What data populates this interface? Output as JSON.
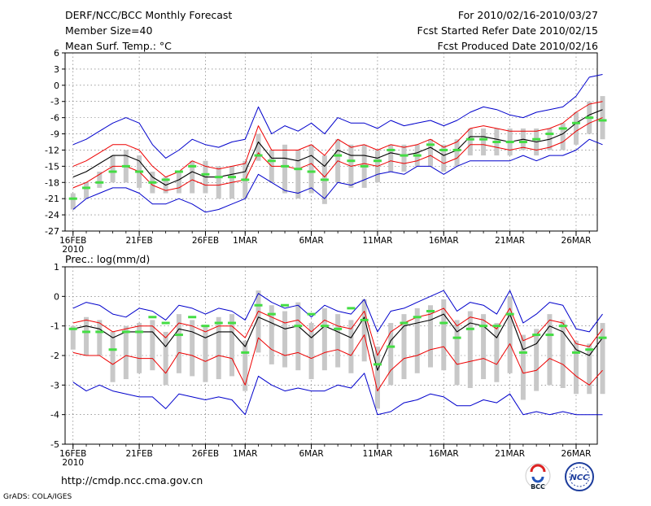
{
  "header": {
    "left": [
      "DERF/NCC/BCC Monthly Forecast",
      "Member Size=40",
      "Mean Surf. Temp.: °C"
    ],
    "right": [
      "For 2010/02/16-2010/03/27",
      "Fcst Started Refer Date 2010/02/15",
      "Fcst Produced Date 2010/02/16"
    ]
  },
  "footer": {
    "url": "http://cmdp.ncc.cma.gov.cn",
    "credit": "GrADS: COLA/IGES",
    "logo_bcc": "BCC",
    "logo_ncc": "NCC"
  },
  "colors": {
    "bound": "#0000cc",
    "mean": "#000000",
    "spread": "#ee0000",
    "obs": "#44dd44",
    "box": "#c8c8c8",
    "grid": "#666666"
  },
  "chart_data": [
    {
      "type": "line",
      "title": "Mean Surf. Temp.: °C",
      "ylim": [
        -27,
        6
      ],
      "yticks": [
        6,
        3,
        0,
        -3,
        -6,
        -9,
        -12,
        -15,
        -18,
        -21,
        -24,
        -27
      ],
      "xlim": [
        -0.6,
        39.6
      ],
      "xticks": [
        {
          "day": 0,
          "label": "16FEB"
        },
        {
          "day": 5,
          "label": "21FEB"
        },
        {
          "day": 10,
          "label": "26FEB"
        },
        {
          "day": 13,
          "label": "1MAR"
        },
        {
          "day": 18,
          "label": "6MAR"
        },
        {
          "day": 23,
          "label": "11MAR"
        },
        {
          "day": 28,
          "label": "16MAR"
        },
        {
          "day": 33,
          "label": "21MAR"
        },
        {
          "day": 38,
          "label": "26MAR"
        }
      ],
      "year_label": "2010",
      "upper_bound": [
        -11,
        -10,
        -8.5,
        -7,
        -6,
        -7,
        -11,
        -13.5,
        -12,
        -10,
        -11,
        -11.5,
        -10.5,
        -10,
        -4,
        -9,
        -7.5,
        -8.5,
        -7,
        -9,
        -6,
        -7,
        -7,
        -8,
        -6.5,
        -7.5,
        -7,
        -6.5,
        -7.5,
        -6.5,
        -5,
        -4,
        -4.5,
        -5.5,
        -6,
        -5,
        -4.5,
        -4,
        -2,
        1.5,
        2
      ],
      "upper_spread": [
        -15,
        -14,
        -12.5,
        -11,
        -11,
        -12,
        -15,
        -17,
        -16,
        -14,
        -15,
        -15.5,
        -15,
        -14.5,
        -7.5,
        -12,
        -12,
        -12,
        -11,
        -13,
        -10,
        -11.5,
        -11,
        -12,
        -11,
        -11.5,
        -11,
        -10,
        -11.5,
        -10.5,
        -8,
        -7.5,
        -8,
        -8.5,
        -8.5,
        -8.5,
        -8,
        -7,
        -5,
        -3.5,
        -3
      ],
      "mean": [
        -17,
        -16,
        -14.5,
        -13,
        -13,
        -14,
        -17,
        -18.5,
        -17.5,
        -16,
        -17,
        -17,
        -16.5,
        -16,
        -10.5,
        -13.5,
        -13.5,
        -14,
        -13,
        -15,
        -12,
        -13,
        -13,
        -13.5,
        -12.5,
        -13,
        -12.5,
        -11.5,
        -13,
        -12,
        -9.5,
        -9.5,
        -10,
        -10.5,
        -10,
        -10.5,
        -10,
        -9,
        -7,
        -5.5,
        -4.5
      ],
      "lower_spread": [
        -19,
        -18,
        -16.5,
        -15,
        -15,
        -16,
        -18.5,
        -19.5,
        -19,
        -17.5,
        -18.5,
        -18.5,
        -18,
        -17.5,
        -12.5,
        -15,
        -15,
        -15.5,
        -14.5,
        -17,
        -14,
        -15,
        -14.5,
        -15,
        -14,
        -14.5,
        -14,
        -13,
        -14.5,
        -13.5,
        -11,
        -11,
        -11.5,
        -12,
        -11.5,
        -12,
        -11.5,
        -10.5,
        -8.5,
        -7,
        -6
      ],
      "lower_bound": [
        -23,
        -21,
        -20,
        -19,
        -19,
        -20,
        -22,
        -22,
        -21,
        -22,
        -23.5,
        -23,
        -22,
        -21,
        -16.5,
        -18,
        -19.5,
        -20,
        -19,
        -21,
        -18,
        -18.5,
        -17.5,
        -16.5,
        -16,
        -16.5,
        -15,
        -15,
        -16.5,
        -15,
        -14,
        -14,
        -14,
        -14,
        -13,
        -14,
        -13,
        -13,
        -12,
        -10,
        -11
      ],
      "box_upper": [
        -20,
        -18,
        -16,
        -13,
        -12,
        -13,
        -16,
        -17,
        -16,
        -14,
        -14,
        -15,
        -15,
        -14,
        -9,
        -12,
        -11,
        -12,
        -11,
        -13,
        -10,
        -11,
        -11,
        -12,
        -11,
        -11,
        -11,
        -10,
        -11,
        -10,
        -8,
        -8,
        -8,
        -8,
        -8,
        -8,
        -8,
        -7,
        -5,
        -3,
        -2
      ],
      "box_lower": [
        -23,
        -21,
        -19,
        -18,
        -18,
        -19,
        -20,
        -20,
        -20,
        -20,
        -20,
        -21,
        -21,
        -21,
        -14,
        -18,
        -20,
        -21,
        -20,
        -22,
        -18,
        -19,
        -19,
        -18,
        -16,
        -16,
        -15,
        -15,
        -16,
        -15,
        -13,
        -13,
        -13,
        -13,
        -12,
        -13,
        -12,
        -12,
        -11,
        -9,
        -10
      ],
      "observed": [
        -21,
        -19,
        -18,
        -16,
        -15,
        -16,
        -18,
        -17.5,
        -16,
        -15,
        -16.5,
        -17,
        -17,
        -17.5,
        -13,
        -14,
        -15,
        -15.5,
        -16,
        -17.5,
        -13,
        -14,
        -15,
        -14,
        -12,
        -13,
        -13,
        -11,
        -12,
        -12,
        -10,
        -10,
        -10.5,
        -10.5,
        -10.5,
        -10,
        -9,
        -8,
        -7,
        -6,
        -6.5
      ]
    },
    {
      "type": "line",
      "title": "Prec.: log(mm/d)",
      "ylim": [
        -5,
        1
      ],
      "yticks": [
        1,
        0,
        -1,
        -2,
        -3,
        -4,
        -5
      ],
      "xlim": [
        -0.6,
        39.6
      ],
      "xticks": [
        {
          "day": 0,
          "label": "16FEB"
        },
        {
          "day": 5,
          "label": "21FEB"
        },
        {
          "day": 10,
          "label": "26FEB"
        },
        {
          "day": 13,
          "label": "1MAR"
        },
        {
          "day": 18,
          "label": "6MAR"
        },
        {
          "day": 23,
          "label": "11MAR"
        },
        {
          "day": 28,
          "label": "16MAR"
        },
        {
          "day": 33,
          "label": "21MAR"
        },
        {
          "day": 38,
          "label": "26MAR"
        }
      ],
      "year_label": "2010",
      "upper_bound": [
        -0.4,
        -0.2,
        -0.3,
        -0.6,
        -0.7,
        -0.4,
        -0.5,
        -0.8,
        -0.3,
        -0.4,
        -0.6,
        -0.4,
        -0.5,
        -0.8,
        0.1,
        -0.2,
        -0.4,
        -0.3,
        -0.7,
        -0.3,
        -0.5,
        -0.6,
        -0.1,
        -1.2,
        -0.5,
        -0.4,
        -0.2,
        0,
        0.2,
        -0.5,
        -0.2,
        -0.3,
        -0.6,
        0.2,
        -0.9,
        -0.6,
        -0.2,
        -0.3,
        -1.1,
        -1.2,
        -0.6
      ],
      "upper_spread": [
        -0.9,
        -0.8,
        -0.9,
        -1.2,
        -1.1,
        -1,
        -1,
        -1.4,
        -0.9,
        -1,
        -1.2,
        -1,
        -1,
        -1.4,
        -0.5,
        -0.7,
        -0.9,
        -0.8,
        -1.2,
        -0.8,
        -1,
        -1.1,
        -0.5,
        -2,
        -1.2,
        -0.9,
        -0.7,
        -0.6,
        -0.4,
        -1,
        -0.7,
        -0.8,
        -1.1,
        -0.4,
        -1.5,
        -1.3,
        -0.8,
        -0.9,
        -1.6,
        -1.7,
        -1.1
      ],
      "mean": [
        -1.1,
        -1,
        -1.1,
        -1.4,
        -1.2,
        -1.2,
        -1.2,
        -1.7,
        -1.1,
        -1.2,
        -1.4,
        -1.2,
        -1.2,
        -1.7,
        -0.7,
        -0.9,
        -1.1,
        -1,
        -1.4,
        -1,
        -1.2,
        -1.4,
        -0.7,
        -2.5,
        -1.5,
        -1,
        -0.9,
        -0.8,
        -0.6,
        -1.2,
        -0.9,
        -1,
        -1.4,
        -0.6,
        -1.8,
        -1.6,
        -1,
        -1.2,
        -1.8,
        -2,
        -1.4
      ],
      "lower_spread": [
        -1.9,
        -2,
        -2,
        -2.3,
        -2,
        -2.1,
        -2.1,
        -2.6,
        -1.9,
        -2,
        -2.2,
        -2,
        -2.1,
        -3,
        -1.4,
        -1.8,
        -2,
        -1.9,
        -2.1,
        -1.9,
        -1.8,
        -2,
        -1.3,
        -3.2,
        -2.5,
        -2.1,
        -2,
        -1.8,
        -1.7,
        -2.3,
        -2.2,
        -2.1,
        -2.3,
        -1.6,
        -2.6,
        -2.5,
        -2.1,
        -2.3,
        -2.7,
        -3,
        -2.5
      ],
      "lower_bound": [
        -2.9,
        -3.2,
        -3,
        -3.2,
        -3.3,
        -3.4,
        -3.4,
        -3.8,
        -3.3,
        -3.4,
        -3.5,
        -3.4,
        -3.5,
        -4,
        -2.7,
        -3,
        -3.2,
        -3.1,
        -3.2,
        -3.2,
        -3,
        -3.1,
        -2.6,
        -4,
        -3.9,
        -3.6,
        -3.5,
        -3.3,
        -3.4,
        -3.7,
        -3.7,
        -3.5,
        -3.6,
        -3.3,
        -4,
        -3.9,
        -4,
        -3.9,
        -4,
        -4,
        -4
      ],
      "box_upper": [
        -1,
        -0.7,
        -0.8,
        -1.2,
        -1,
        -0.9,
        -0.8,
        -1.2,
        -0.6,
        -0.8,
        -1,
        -0.7,
        -0.6,
        -1.5,
        0.2,
        -0.3,
        -0.5,
        -0.2,
        -0.9,
        -0.4,
        -0.6,
        -0.8,
        -0.1,
        -1.7,
        -0.9,
        -0.6,
        -0.4,
        -0.3,
        -0.1,
        -0.8,
        -0.5,
        -0.6,
        -0.9,
        0,
        -1.3,
        -1.1,
        -0.6,
        -0.8,
        -1.5,
        -1.6,
        -0.9
      ],
      "box_lower": [
        -1.8,
        -2,
        -2,
        -2.9,
        -2.8,
        -2.6,
        -2.5,
        -3,
        -2.6,
        -2.7,
        -2.9,
        -2.8,
        -2.7,
        -3.2,
        -1.9,
        -2.3,
        -2.4,
        -2.5,
        -2.8,
        -2.5,
        -2.4,
        -2.6,
        -2.2,
        -3.8,
        -3,
        -2.8,
        -2.6,
        -2.4,
        -2.5,
        -3,
        -3.1,
        -2.8,
        -2.9,
        -2.6,
        -3.5,
        -3.2,
        -3,
        -3.1,
        -3.3,
        -3.3,
        -3.3
      ],
      "observed": [
        -1.1,
        -1.2,
        -1.2,
        -1.8,
        -1.2,
        -1.2,
        -0.7,
        -0.9,
        -1.3,
        -0.7,
        -1,
        -0.9,
        -0.9,
        -1.9,
        -0.3,
        -0.6,
        -0.3,
        -1,
        -0.6,
        -1,
        -1.1,
        -0.4,
        -0.8,
        -2.3,
        -1.7,
        -0.9,
        -0.7,
        -0.5,
        -0.9,
        -1.4,
        -1.1,
        -1,
        -1,
        -0.6,
        -1.9,
        -1.3,
        -1.3,
        -1,
        -1.9,
        -1.8,
        -1.4
      ]
    }
  ]
}
